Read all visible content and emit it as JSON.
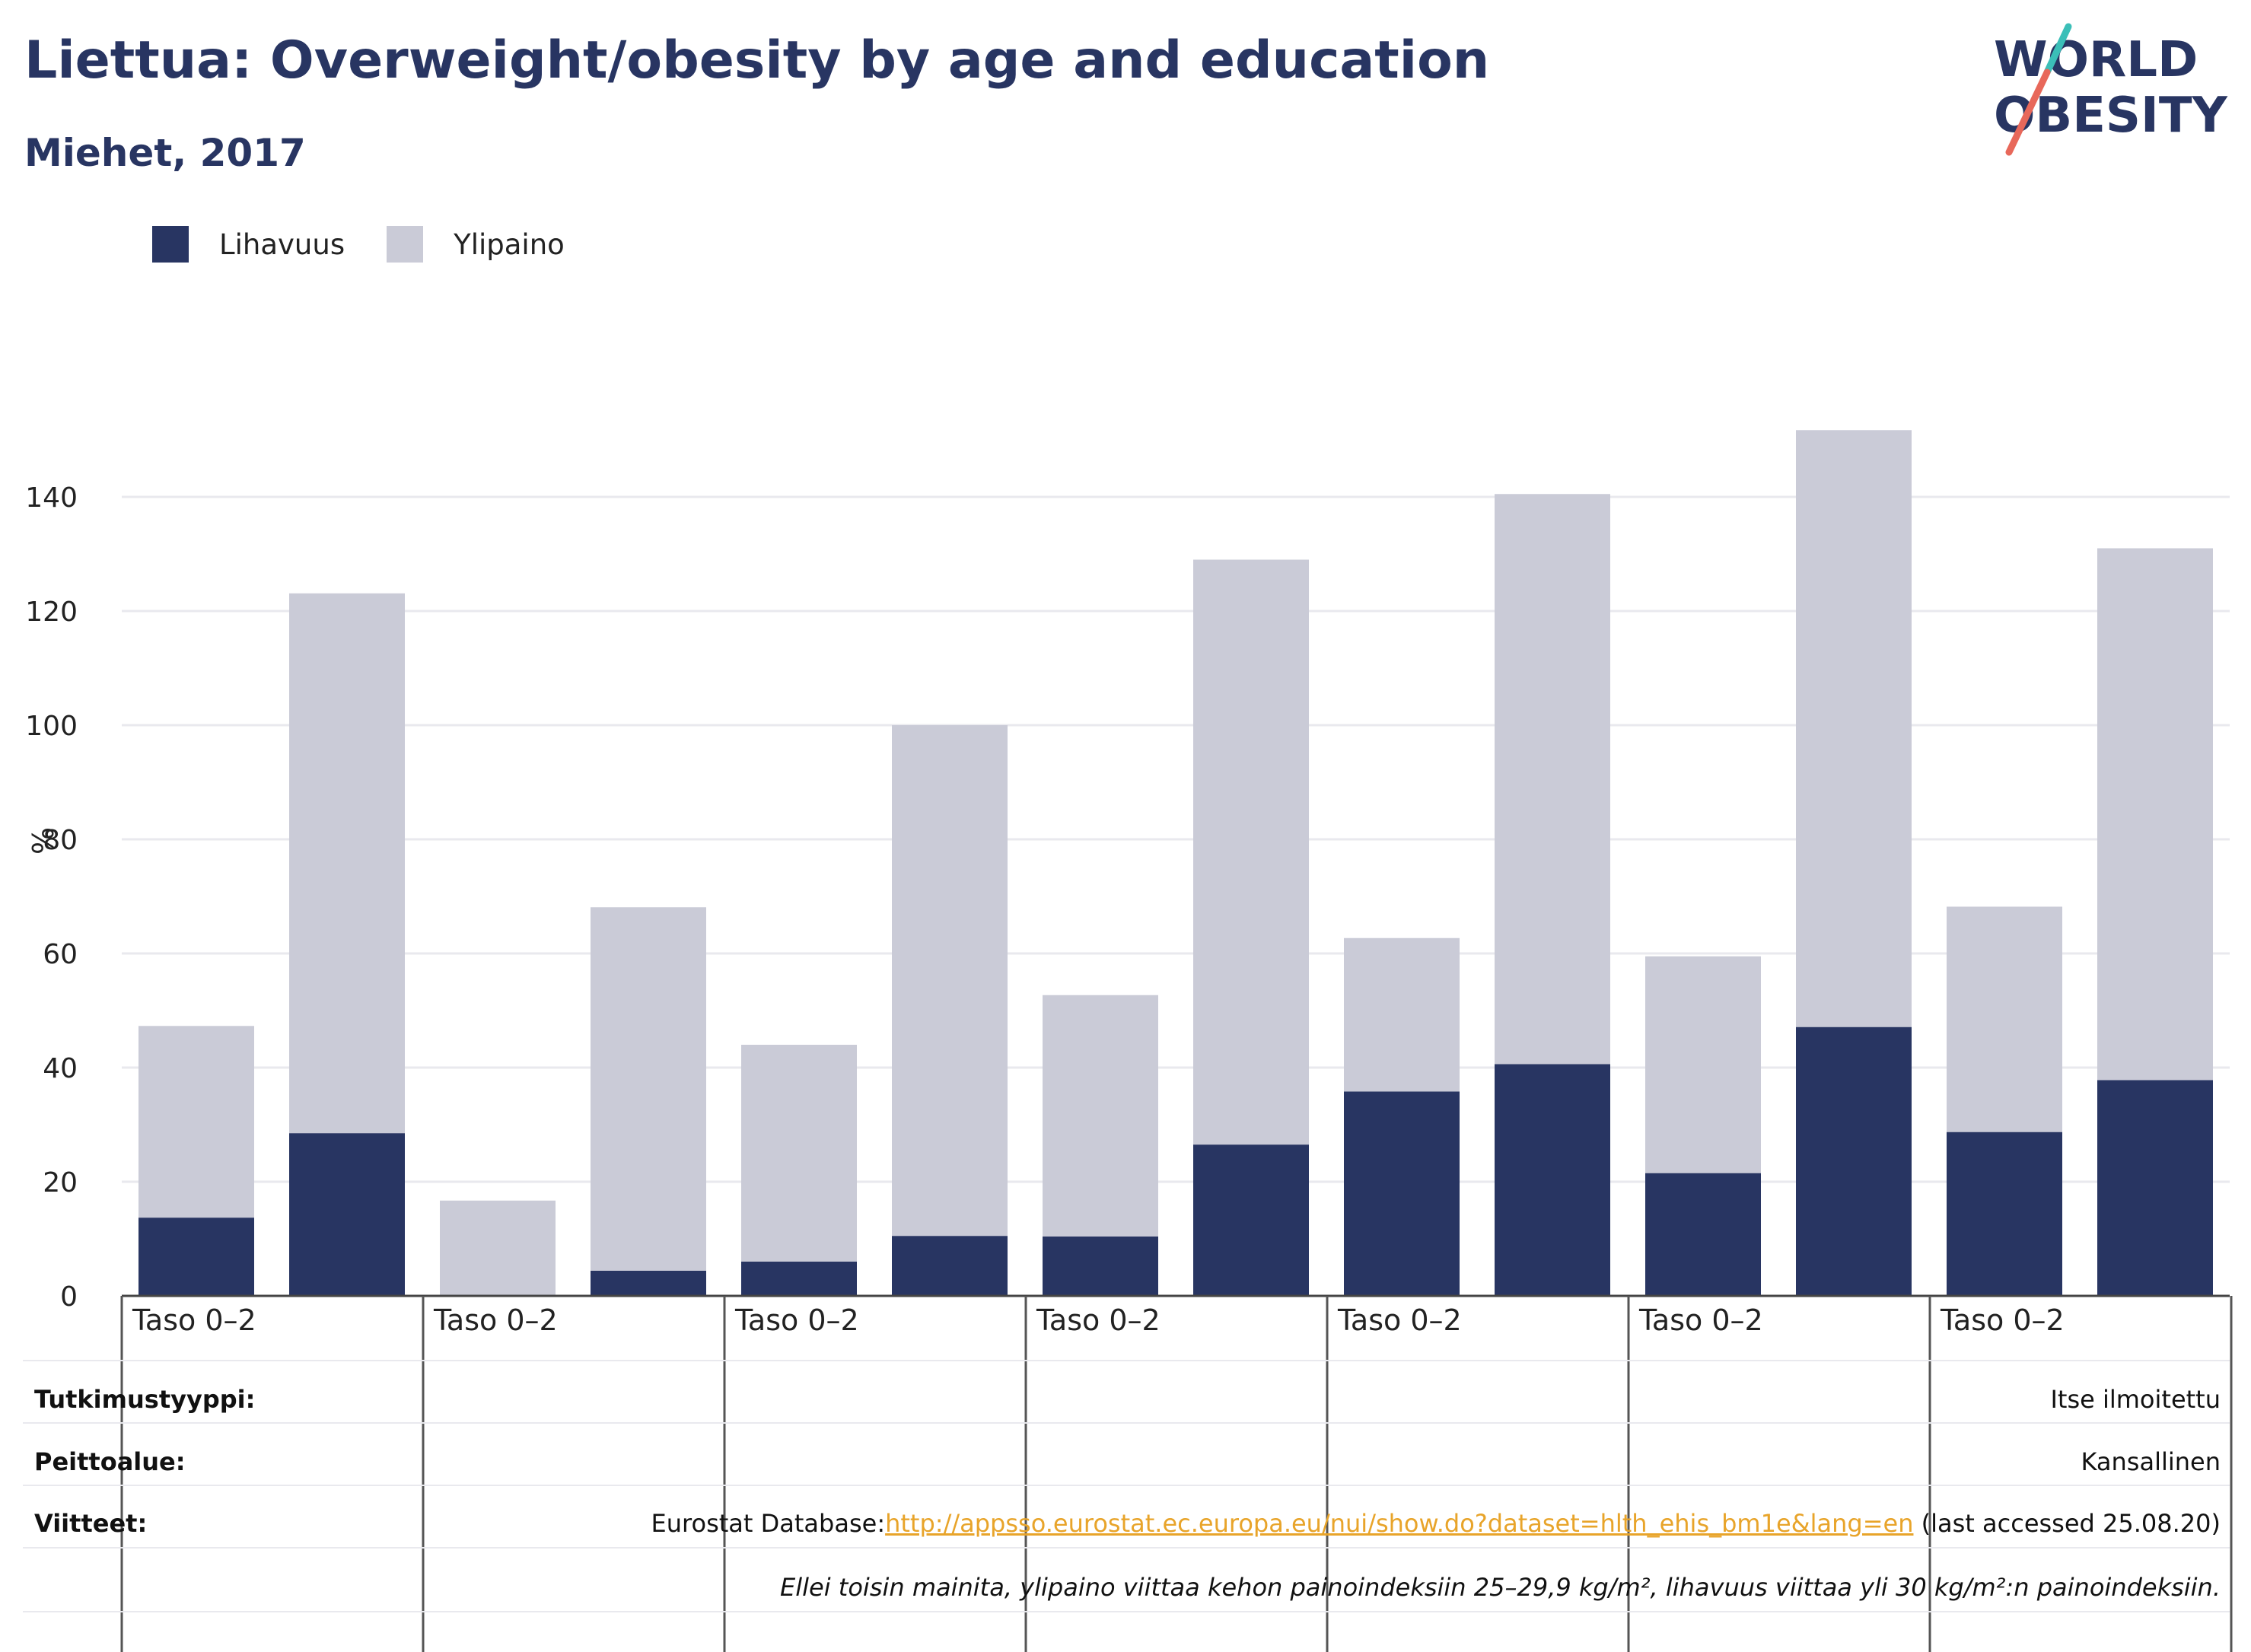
{
  "header": {
    "title": "Liettua: Overweight/obesity by age and education",
    "subtitle": "Miehet, 2017"
  },
  "logo": {
    "line1": "WORLD",
    "line2": "OBESITY",
    "accent_teal": "#3bbfb8",
    "accent_coral": "#e8685a"
  },
  "legend": [
    {
      "name": "Lihavuus",
      "color": "#283562"
    },
    {
      "name": "Ylipaino",
      "color": "#cacbd7"
    }
  ],
  "chart_data": {
    "type": "bar",
    "stacked": true,
    "ylabel": "%",
    "ylim": [
      0,
      155
    ],
    "yticks": [
      0,
      20,
      40,
      60,
      80,
      100,
      120,
      140
    ],
    "grid": true,
    "group_labels": [
      "Taso 0–2",
      "Taso 0–2",
      "Taso 0–2",
      "Taso 0–2",
      "Taso 0–2",
      "Taso 0–2",
      "Taso 0–2"
    ],
    "series": [
      {
        "name": "Lihavuus",
        "color": "#283562",
        "values": [
          13.7,
          28.5,
          0,
          4.4,
          6.0,
          10.5,
          10.4,
          26.5,
          35.8,
          40.6,
          21.5,
          47.1,
          28.7,
          37.8
        ]
      },
      {
        "name": "Ylipaino",
        "color": "#cacbd7",
        "values": [
          33.6,
          94.6,
          16.7,
          63.7,
          38.0,
          89.5,
          42.3,
          102.5,
          26.9,
          99.9,
          38.0,
          104.6,
          39.5,
          93.2
        ]
      }
    ]
  },
  "info": {
    "survey_label": "Tutkimustyyppi:",
    "survey_value": "Itse ilmoitettu",
    "coverage_label": "Peittoalue:",
    "coverage_value": "Kansallinen",
    "refs_label": "Viitteet:",
    "refs_prefix": "Eurostat Database:",
    "refs_link": "http://appsso.eurostat.ec.europa.eu/nui/show.do?dataset=hlth_ehis_bm1e&lang=en",
    "refs_suffix": " (last accessed 25.08.20)",
    "note": "Ellei toisin mainita, ylipaino viittaa kehon painoindeksiin 25–29,9 kg/m², lihavuus viittaa yli 30 kg/m²:n painoindeksiin."
  }
}
